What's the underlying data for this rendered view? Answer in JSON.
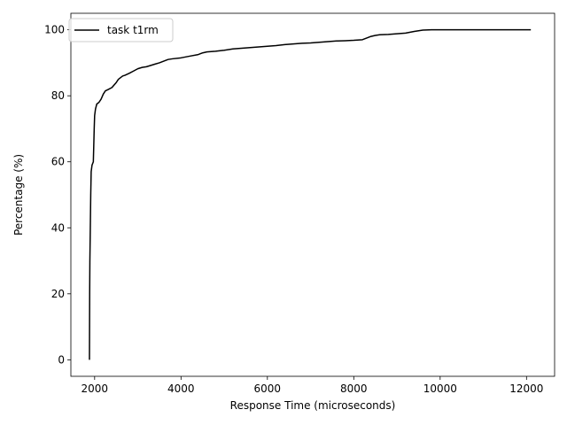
{
  "chart_data": {
    "type": "line",
    "title": "",
    "xlabel": "Response Time (microseconds)",
    "ylabel": "Percentage (%)",
    "xlim": [
      1450,
      12650
    ],
    "ylim": [
      -5,
      105
    ],
    "xticks": [
      2000,
      4000,
      6000,
      8000,
      10000,
      12000
    ],
    "yticks": [
      0,
      20,
      40,
      60,
      80,
      100
    ],
    "grid": false,
    "legend": "top-left",
    "series": [
      {
        "name": "task t1rm",
        "color": "#000000",
        "x": [
          1880,
          1885,
          1890,
          1900,
          1910,
          1920,
          1940,
          1970,
          1980,
          1990,
          2000,
          2020,
          2050,
          2100,
          2150,
          2200,
          2250,
          2300,
          2400,
          2500,
          2550,
          2600,
          2650,
          2700,
          2800,
          2900,
          3000,
          3100,
          3200,
          3300,
          3400,
          3500,
          3600,
          3700,
          3800,
          4000,
          4200,
          4400,
          4500,
          4600,
          4800,
          5000,
          5200,
          5400,
          5600,
          5800,
          6000,
          6200,
          6400,
          6600,
          6800,
          7000,
          7200,
          7400,
          7600,
          7800,
          8000,
          8200,
          8300,
          8400,
          8500,
          8600,
          8800,
          9000,
          9200,
          9400,
          9500,
          9600,
          9800,
          10000,
          10500,
          11000,
          11500,
          12100
        ],
        "y": [
          0,
          20,
          30,
          40,
          50,
          57,
          59,
          60,
          65,
          70,
          74,
          76,
          77.5,
          78,
          79,
          80.5,
          81.5,
          81.8,
          82.5,
          84,
          85,
          85.5,
          86,
          86.2,
          86.8,
          87.5,
          88.2,
          88.6,
          88.8,
          89.2,
          89.6,
          90,
          90.5,
          91,
          91.2,
          91.5,
          92,
          92.5,
          93,
          93.3,
          93.5,
          93.8,
          94.2,
          94.4,
          94.6,
          94.8,
          95,
          95.2,
          95.5,
          95.7,
          95.9,
          96,
          96.2,
          96.4,
          96.6,
          96.7,
          96.8,
          97,
          97.5,
          98,
          98.3,
          98.5,
          98.6,
          98.8,
          99,
          99.5,
          99.7,
          99.9,
          100,
          100,
          100,
          100,
          100,
          100
        ]
      }
    ]
  }
}
